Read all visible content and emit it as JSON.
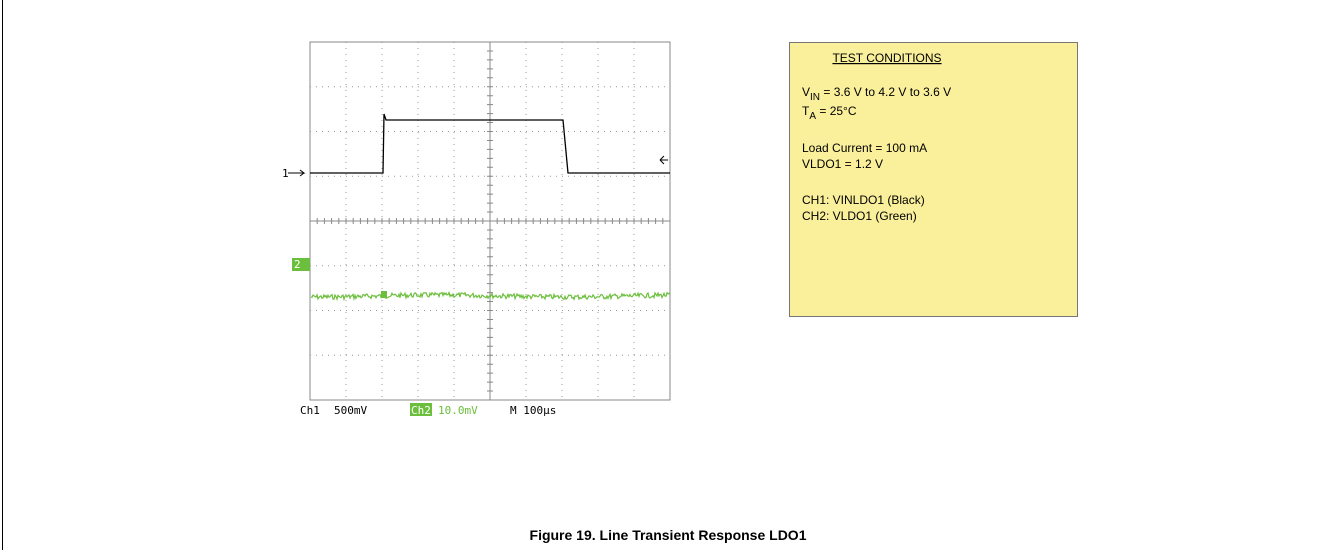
{
  "scope": {
    "channel_markers": [
      "1",
      "2"
    ],
    "ch1_label": "Ch1",
    "ch1_scale": "500mV",
    "ch2_label": "Ch2",
    "ch2_scale": "10.0mV",
    "timebase": "M 100µs"
  },
  "test_conditions": {
    "title": "TEST CONDITIONS",
    "vin": {
      "symbol": "V",
      "subscript": "IN",
      "text": " = 3.6 V to 4.2 V to 3.6 V"
    },
    "ta": {
      "symbol": "T",
      "subscript": "A",
      "text": " = 25°C"
    },
    "lines": [
      "Load Current = 100 mA",
      "VLDO1 = 1.2 V",
      "CH1: VINLDO1 (Black)",
      "CH2: VLDO1 (Green)"
    ]
  },
  "caption": "Figure 19. Line Transient Response LDO1"
}
